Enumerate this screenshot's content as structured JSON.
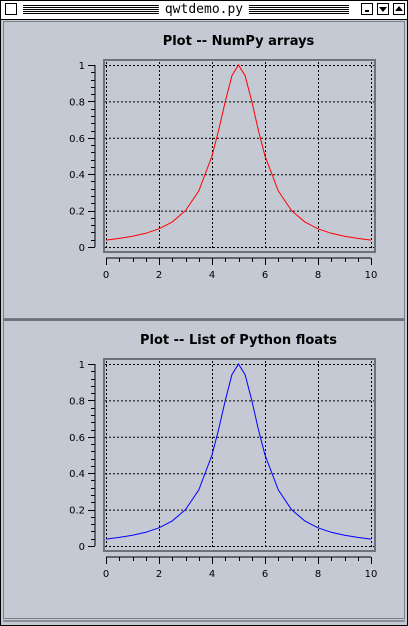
{
  "window": {
    "title": "qwtdemo.py",
    "icons": [
      "close-icon",
      "minimize-icon",
      "maximize-icon",
      "shade-icon"
    ]
  },
  "colors": {
    "background": "#c4c9d3",
    "curve_top": "#ff0000",
    "curve_bottom": "#0000ff"
  },
  "chart_data": [
    {
      "type": "line",
      "title": "Plot -- NumPy arrays",
      "xlim": [
        0,
        10
      ],
      "ylim": [
        0,
        1
      ],
      "xticks": [
        "0",
        "2",
        "4",
        "6",
        "8",
        "10"
      ],
      "yticks": [
        "0",
        "0.2",
        "0.4",
        "0.6",
        "0.8",
        "1"
      ],
      "grid": true,
      "series": [
        {
          "color": "#ff0000",
          "x": [
            0,
            0.5,
            1,
            1.5,
            2,
            2.5,
            3,
            3.5,
            4,
            4.25,
            4.5,
            4.75,
            5,
            5.25,
            5.5,
            5.75,
            6,
            6.5,
            7,
            7.5,
            8,
            8.5,
            9,
            9.5,
            10
          ],
          "y": [
            0.038,
            0.047,
            0.059,
            0.075,
            0.1,
            0.138,
            0.2,
            0.308,
            0.5,
            0.64,
            0.8,
            0.941,
            1,
            0.941,
            0.8,
            0.64,
            0.5,
            0.308,
            0.2,
            0.138,
            0.1,
            0.075,
            0.059,
            0.047,
            0.038
          ]
        }
      ]
    },
    {
      "type": "line",
      "title": "Plot -- List of Python floats",
      "xlim": [
        0,
        10
      ],
      "ylim": [
        0,
        1
      ],
      "xticks": [
        "0",
        "2",
        "4",
        "6",
        "8",
        "10"
      ],
      "yticks": [
        "0",
        "0.2",
        "0.4",
        "0.6",
        "0.8",
        "1"
      ],
      "grid": true,
      "series": [
        {
          "color": "#0000ff",
          "x": [
            0,
            0.5,
            1,
            1.5,
            2,
            2.5,
            3,
            3.5,
            4,
            4.25,
            4.5,
            4.75,
            5,
            5.25,
            5.5,
            5.75,
            6,
            6.5,
            7,
            7.5,
            8,
            8.5,
            9,
            9.5,
            10
          ],
          "y": [
            0.038,
            0.047,
            0.059,
            0.075,
            0.1,
            0.138,
            0.2,
            0.308,
            0.5,
            0.64,
            0.8,
            0.941,
            1,
            0.941,
            0.8,
            0.64,
            0.5,
            0.308,
            0.2,
            0.138,
            0.1,
            0.075,
            0.059,
            0.047,
            0.038
          ]
        }
      ]
    }
  ]
}
